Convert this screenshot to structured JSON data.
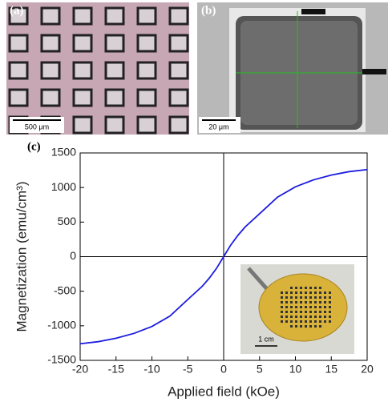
{
  "panels": {
    "a": {
      "label": "(a)",
      "scale_bar": "500 μm"
    },
    "b": {
      "label": "(b)",
      "scale_bar": "20 μm"
    },
    "c": {
      "label": "(c)",
      "inset_scale_bar": "1 cm"
    }
  },
  "chart_data": {
    "type": "line",
    "color": "#1c1ce0",
    "x_label": "Applied field (kOe)",
    "y_label": "Magnetization (emu/cm³)",
    "x": [
      -20,
      -17.5,
      -15,
      -12.5,
      -10,
      -7.5,
      -5,
      -3,
      -2,
      -1,
      0,
      1,
      2,
      3,
      5,
      7.5,
      10,
      12.5,
      15,
      17.5,
      20
    ],
    "values": [
      -1260,
      -1230,
      -1180,
      -1110,
      -1010,
      -860,
      -620,
      -430,
      -310,
      -170,
      0,
      170,
      310,
      430,
      620,
      860,
      1010,
      1110,
      1180,
      1230,
      1260
    ],
    "xlim": [
      -20,
      20
    ],
    "ylim": [
      -1500,
      1500
    ],
    "xticks": [
      -20,
      -15,
      -10,
      -5,
      0,
      5,
      10,
      15,
      20
    ],
    "yticks": [
      -1500,
      -1000,
      -500,
      0,
      500,
      1000,
      1500
    ],
    "zero_lines": true
  }
}
